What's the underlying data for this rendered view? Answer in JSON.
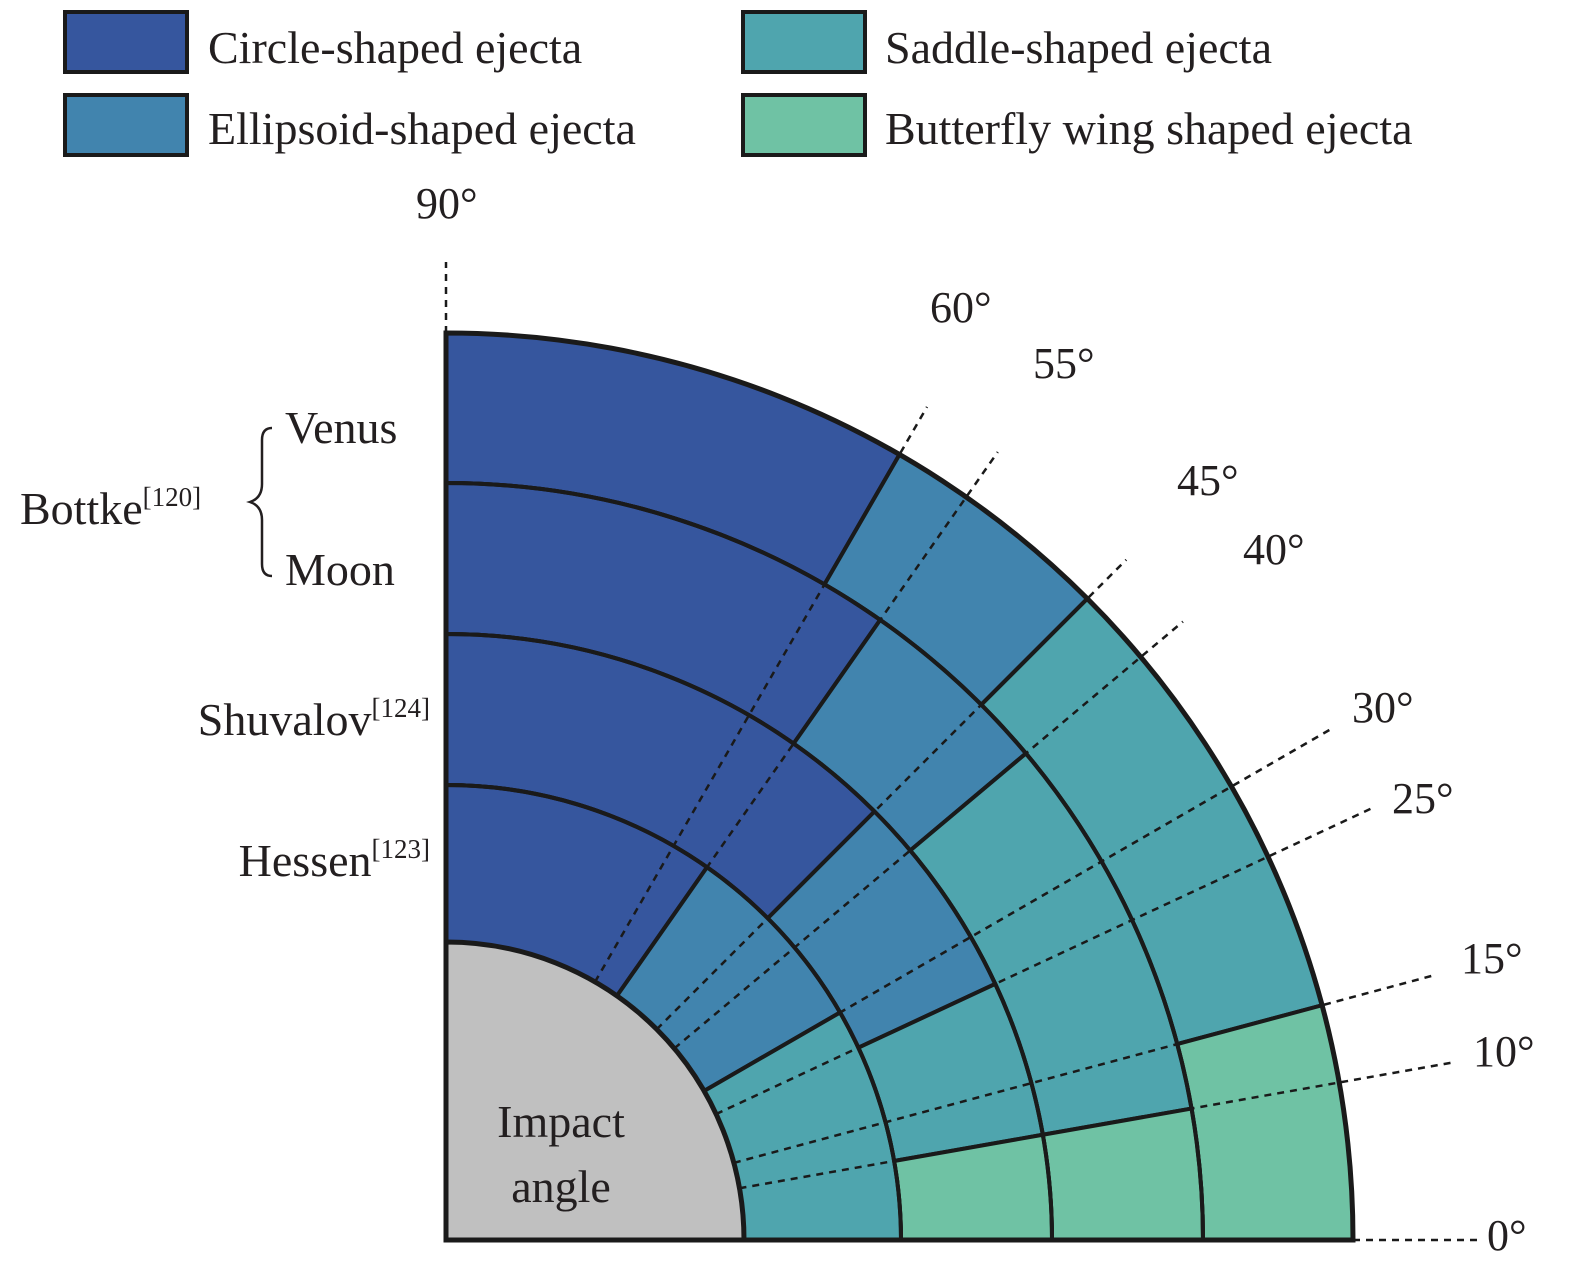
{
  "legend": {
    "items": [
      {
        "label": "Circle-shaped ejecta",
        "color": "#36569e"
      },
      {
        "label": "Saddle-shaped ejecta",
        "color": "#4fa5ae"
      },
      {
        "label": "Ellipsoid-shaped ejecta",
        "color": "#4184ae"
      },
      {
        "label": "Butterfly wing shaped ejecta",
        "color": "#6fc2a4"
      }
    ]
  },
  "center": {
    "line1": "Impact",
    "line2": "angle",
    "color": "#c0c0c0"
  },
  "angles": [
    {
      "label": "90°",
      "value": 90
    },
    {
      "label": "60°",
      "value": 60
    },
    {
      "label": "55°",
      "value": 55
    },
    {
      "label": "45°",
      "value": 45
    },
    {
      "label": "40°",
      "value": 40
    },
    {
      "label": "30°",
      "value": 30
    },
    {
      "label": "25°",
      "value": 25
    },
    {
      "label": "15°",
      "value": 15
    },
    {
      "label": "10°",
      "value": 10
    },
    {
      "label": "0°",
      "value": 0
    }
  ],
  "sources": {
    "group": {
      "name": "Bottke",
      "ref": "[120]"
    },
    "rows": [
      {
        "name": "Venus",
        "ref": "",
        "circle_min": 60,
        "ellipsoid_min": 45,
        "saddle_min": 15
      },
      {
        "name": "Moon",
        "ref": "",
        "circle_min": 55,
        "ellipsoid_min": 40,
        "saddle_min": 10
      },
      {
        "name": "Shuvalov",
        "ref": "[124]",
        "circle_min": 45,
        "ellipsoid_min": 25,
        "saddle_min": 10
      },
      {
        "name": "Hessen",
        "ref": "[123]",
        "circle_min": 55,
        "ellipsoid_min": 30,
        "saddle_min": 0
      }
    ]
  }
}
